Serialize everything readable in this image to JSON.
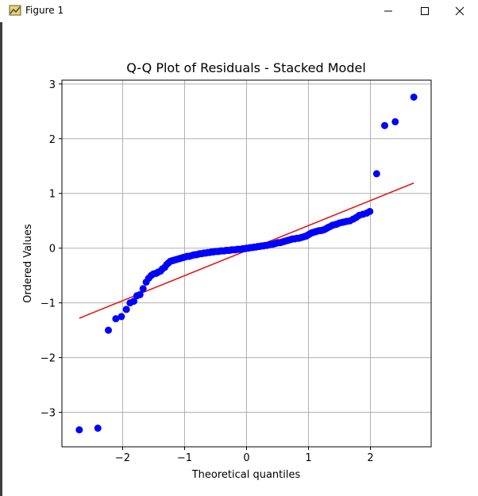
{
  "window": {
    "title": "Figure 1",
    "icons": [
      "figure-app-icon",
      "minimize-icon",
      "maximize-icon",
      "close-icon"
    ]
  },
  "chart_data": {
    "type": "scatter",
    "title": "Q-Q Plot of Residuals - Stacked Model",
    "xlabel": "Theoretical quantiles",
    "ylabel": "Ordered Values",
    "xlim": [
      -2.98,
      2.98
    ],
    "ylim": [
      -3.63,
      3.07
    ],
    "xticks": [
      -2,
      -1,
      0,
      1,
      2
    ],
    "yticks": [
      -3,
      -2,
      -1,
      0,
      1,
      2,
      3
    ],
    "xtick_labels": [
      "−2",
      "−1",
      "0",
      "1",
      "2"
    ],
    "ytick_labels": [
      "−3",
      "−2",
      "−1",
      "0",
      "1",
      "2",
      "3"
    ],
    "grid": true,
    "point_color": "#0000ff",
    "line_color": "#e41a1c",
    "fit_line": {
      "x": [
        -2.7,
        2.7
      ],
      "y": [
        -1.28,
        1.19
      ]
    },
    "series": [
      {
        "x": [
          -2.7,
          -2.4,
          -2.23,
          -2.11,
          -2.02,
          -1.94,
          -1.88,
          -1.82,
          -1.77,
          -1.72,
          -1.67,
          -1.62,
          -1.58,
          -1.54,
          -1.5,
          -1.46,
          -1.43,
          -1.39,
          -1.36,
          -1.32,
          -1.29,
          -1.26,
          -1.23,
          -1.2,
          -1.17,
          -1.14,
          -1.11,
          -1.08,
          -1.05,
          -1.02,
          -0.99,
          -0.96,
          -0.93,
          -0.9,
          -0.87,
          -0.84,
          -0.81,
          -0.78,
          -0.75,
          -0.72,
          -0.69,
          -0.66,
          -0.63,
          -0.6,
          -0.57,
          -0.54,
          -0.51,
          -0.48,
          -0.45,
          -0.42,
          -0.39,
          -0.36,
          -0.33,
          -0.3,
          -0.27,
          -0.24,
          -0.21,
          -0.18,
          -0.15,
          -0.12,
          -0.09,
          -0.06,
          -0.03,
          0.0,
          0.03,
          0.06,
          0.09,
          0.12,
          0.15,
          0.18,
          0.21,
          0.24,
          0.27,
          0.3,
          0.33,
          0.36,
          0.39,
          0.42,
          0.45,
          0.48,
          0.51,
          0.54,
          0.57,
          0.6,
          0.63,
          0.66,
          0.69,
          0.72,
          0.75,
          0.78,
          0.81,
          0.84,
          0.87,
          0.9,
          0.93,
          0.96,
          0.99,
          1.02,
          1.05,
          1.08,
          1.11,
          1.14,
          1.17,
          1.2,
          1.23,
          1.26,
          1.29,
          1.32,
          1.36,
          1.39,
          1.43,
          1.46,
          1.5,
          1.54,
          1.58,
          1.62,
          1.67,
          1.72,
          1.77,
          1.82,
          1.88,
          1.94,
          1.99,
          2.1,
          2.23,
          2.4,
          2.7
        ],
        "y": [
          -3.32,
          -3.29,
          -1.5,
          -1.29,
          -1.25,
          -1.12,
          -1.0,
          -0.97,
          -0.87,
          -0.85,
          -0.74,
          -0.62,
          -0.55,
          -0.5,
          -0.47,
          -0.46,
          -0.44,
          -0.42,
          -0.38,
          -0.35,
          -0.3,
          -0.27,
          -0.24,
          -0.23,
          -0.22,
          -0.21,
          -0.2,
          -0.19,
          -0.18,
          -0.17,
          -0.16,
          -0.15,
          -0.15,
          -0.14,
          -0.13,
          -0.12,
          -0.12,
          -0.11,
          -0.1,
          -0.1,
          -0.09,
          -0.09,
          -0.08,
          -0.08,
          -0.07,
          -0.07,
          -0.06,
          -0.06,
          -0.06,
          -0.05,
          -0.05,
          -0.05,
          -0.04,
          -0.04,
          -0.04,
          -0.03,
          -0.03,
          -0.03,
          -0.02,
          -0.02,
          -0.02,
          -0.01,
          -0.01,
          0.0,
          0.0,
          0.01,
          0.01,
          0.02,
          0.02,
          0.03,
          0.03,
          0.04,
          0.04,
          0.05,
          0.05,
          0.06,
          0.07,
          0.07,
          0.08,
          0.09,
          0.1,
          0.1,
          0.11,
          0.12,
          0.13,
          0.14,
          0.15,
          0.16,
          0.17,
          0.17,
          0.18,
          0.18,
          0.19,
          0.2,
          0.21,
          0.22,
          0.24,
          0.26,
          0.28,
          0.29,
          0.3,
          0.31,
          0.32,
          0.32,
          0.33,
          0.34,
          0.36,
          0.38,
          0.4,
          0.42,
          0.43,
          0.44,
          0.46,
          0.47,
          0.48,
          0.49,
          0.5,
          0.53,
          0.56,
          0.6,
          0.62,
          0.64,
          0.67,
          1.36,
          2.24,
          2.31,
          2.76
        ]
      }
    ]
  }
}
